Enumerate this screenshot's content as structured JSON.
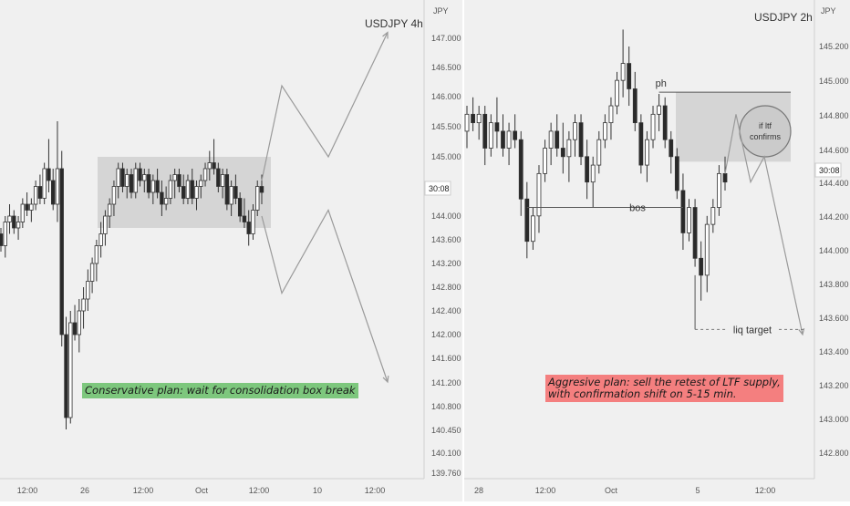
{
  "chart_data": [
    {
      "type": "candlestick",
      "title": "USDJPY 4h",
      "y_axis_label": "JPY",
      "y_ticks": [
        "147.000",
        "146.500",
        "146.000",
        "145.500",
        "145.000",
        "144.000",
        "143.600",
        "143.200",
        "142.800",
        "142.400",
        "142.000",
        "141.600",
        "141.200",
        "140.800",
        "140.450",
        "140.100",
        "139.760"
      ],
      "x_ticks": [
        "12:00",
        "26",
        "12:00",
        "Oct",
        "12:00",
        "10",
        "12:00"
      ],
      "price_badge": "30:08",
      "annotation": "Conservative plan: wait for consolidation box break",
      "consolidation_box": {
        "high": 145.0,
        "low": 143.8
      },
      "scenario_paths": [
        {
          "direction": "up",
          "points": [
            144.6,
            146.2,
            145.0,
            147.1
          ]
        },
        {
          "direction": "down",
          "points": [
            144.0,
            142.7,
            144.1,
            141.2
          ]
        }
      ],
      "ohlc": [
        [
          143.7,
          143.8,
          143.4,
          143.5
        ],
        [
          143.5,
          144.0,
          143.3,
          143.9
        ],
        [
          143.9,
          144.2,
          143.7,
          144.0
        ],
        [
          144.0,
          144.1,
          143.7,
          143.8
        ],
        [
          143.8,
          144.0,
          143.6,
          143.9
        ],
        [
          143.9,
          144.3,
          143.8,
          144.2
        ],
        [
          144.2,
          144.4,
          144.0,
          144.1
        ],
        [
          144.1,
          144.3,
          143.9,
          144.2
        ],
        [
          144.2,
          144.6,
          144.1,
          144.5
        ],
        [
          144.5,
          144.7,
          144.2,
          144.3
        ],
        [
          144.3,
          144.9,
          144.2,
          144.8
        ],
        [
          144.8,
          145.3,
          144.4,
          144.6
        ],
        [
          144.6,
          144.8,
          144.1,
          144.2
        ],
        [
          144.2,
          145.6,
          143.9,
          144.8
        ],
        [
          144.8,
          145.1,
          141.8,
          142.0
        ],
        [
          142.0,
          142.3,
          140.4,
          140.6
        ],
        [
          140.6,
          142.4,
          140.5,
          142.2
        ],
        [
          142.2,
          142.5,
          141.9,
          142.0
        ],
        [
          142.0,
          142.6,
          141.7,
          142.4
        ],
        [
          142.4,
          142.8,
          142.1,
          142.6
        ],
        [
          142.6,
          143.1,
          142.4,
          142.9
        ],
        [
          142.9,
          143.3,
          142.7,
          143.2
        ],
        [
          143.2,
          143.6,
          142.9,
          143.5
        ],
        [
          143.5,
          143.9,
          143.3,
          143.7
        ],
        [
          143.7,
          144.1,
          143.5,
          144.0
        ],
        [
          144.0,
          144.3,
          143.8,
          144.2
        ],
        [
          144.2,
          144.6,
          144.0,
          144.5
        ],
        [
          144.5,
          144.9,
          144.3,
          144.8
        ],
        [
          144.8,
          144.9,
          144.4,
          144.5
        ],
        [
          144.5,
          144.8,
          144.3,
          144.7
        ],
        [
          144.7,
          144.8,
          144.3,
          144.4
        ],
        [
          144.4,
          144.9,
          144.3,
          144.8
        ],
        [
          144.8,
          144.9,
          144.5,
          144.6
        ],
        [
          144.6,
          144.8,
          144.4,
          144.7
        ],
        [
          144.7,
          144.8,
          144.3,
          144.4
        ],
        [
          144.4,
          144.7,
          144.2,
          144.6
        ],
        [
          144.6,
          144.8,
          144.3,
          144.4
        ],
        [
          144.4,
          144.6,
          144.0,
          144.2
        ],
        [
          144.2,
          144.5,
          144.1,
          144.3
        ],
        [
          144.3,
          144.7,
          144.2,
          144.6
        ],
        [
          144.6,
          144.8,
          144.3,
          144.7
        ],
        [
          144.7,
          144.8,
          144.4,
          144.5
        ],
        [
          144.5,
          144.7,
          144.2,
          144.3
        ],
        [
          144.3,
          144.7,
          144.2,
          144.6
        ],
        [
          144.6,
          144.8,
          144.2,
          144.3
        ],
        [
          144.3,
          144.6,
          144.1,
          144.5
        ],
        [
          144.5,
          144.7,
          144.3,
          144.6
        ],
        [
          144.6,
          144.9,
          144.5,
          144.8
        ],
        [
          144.8,
          145.1,
          144.6,
          144.9
        ],
        [
          144.9,
          145.3,
          144.7,
          144.8
        ],
        [
          144.8,
          144.9,
          144.4,
          144.5
        ],
        [
          144.5,
          144.8,
          144.3,
          144.7
        ],
        [
          144.7,
          144.8,
          144.1,
          144.2
        ],
        [
          144.2,
          144.6,
          144.0,
          144.5
        ],
        [
          144.5,
          144.7,
          144.2,
          144.3
        ],
        [
          144.3,
          144.4,
          143.9,
          144.0
        ],
        [
          144.0,
          144.3,
          143.8,
          143.9
        ],
        [
          143.9,
          144.1,
          143.5,
          143.7
        ],
        [
          143.7,
          144.2,
          143.6,
          144.1
        ],
        [
          144.1,
          144.6,
          144.0,
          144.5
        ],
        [
          144.5,
          144.7,
          144.2,
          144.4
        ]
      ]
    },
    {
      "type": "candlestick",
      "title": "USDJPY 2h",
      "y_axis_label": "JPY",
      "y_ticks": [
        "145.200",
        "145.000",
        "144.800",
        "144.600",
        "144.400",
        "144.200",
        "144.000",
        "143.800",
        "143.600",
        "143.400",
        "143.200",
        "143.000",
        "142.800"
      ],
      "x_ticks": [
        "28",
        "12:00",
        "Oct",
        "5",
        "12:00"
      ],
      "price_badge": "30:08",
      "annotation": "Aggresive plan: sell the retest of LTF supply, with confirmation shift on 5-15 min.",
      "labels": {
        "ph": "ph",
        "bos": "bos",
        "confirm": "if ltf confirms",
        "target": "liq target"
      },
      "supply_box": {
        "high": 144.93,
        "low": 144.52
      },
      "liquidity_target": 143.53,
      "ohlc": [
        [
          144.7,
          144.85,
          144.6,
          144.8
        ],
        [
          144.8,
          144.9,
          144.7,
          144.75
        ],
        [
          144.75,
          144.85,
          144.65,
          144.8
        ],
        [
          144.8,
          144.85,
          144.5,
          144.6
        ],
        [
          144.6,
          144.8,
          144.55,
          144.75
        ],
        [
          144.75,
          144.9,
          144.6,
          144.7
        ],
        [
          144.7,
          144.8,
          144.55,
          144.6
        ],
        [
          144.6,
          144.75,
          144.5,
          144.7
        ],
        [
          144.7,
          144.8,
          144.6,
          144.65
        ],
        [
          144.65,
          144.7,
          144.2,
          144.3
        ],
        [
          144.3,
          144.4,
          143.95,
          144.05
        ],
        [
          144.05,
          144.25,
          144.0,
          144.2
        ],
        [
          144.2,
          144.5,
          144.1,
          144.45
        ],
        [
          144.45,
          144.65,
          144.4,
          144.6
        ],
        [
          144.6,
          144.75,
          144.5,
          144.7
        ],
        [
          144.7,
          144.8,
          144.55,
          144.6
        ],
        [
          144.6,
          144.75,
          144.45,
          144.55
        ],
        [
          144.55,
          144.7,
          144.4,
          144.65
        ],
        [
          144.65,
          144.8,
          144.55,
          144.75
        ],
        [
          144.75,
          144.8,
          144.5,
          144.55
        ],
        [
          144.55,
          144.65,
          144.3,
          144.4
        ],
        [
          144.4,
          144.55,
          144.25,
          144.5
        ],
        [
          144.5,
          144.7,
          144.45,
          144.65
        ],
        [
          144.65,
          144.8,
          144.6,
          144.75
        ],
        [
          144.75,
          144.9,
          144.65,
          144.85
        ],
        [
          144.85,
          145.05,
          144.8,
          145.0
        ],
        [
          145.0,
          145.3,
          144.9,
          145.1
        ],
        [
          145.1,
          145.2,
          144.85,
          144.95
        ],
        [
          144.95,
          145.05,
          144.7,
          144.75
        ],
        [
          144.75,
          144.8,
          144.45,
          144.5
        ],
        [
          144.5,
          144.7,
          144.4,
          144.65
        ],
        [
          144.65,
          144.85,
          144.6,
          144.8
        ],
        [
          144.8,
          144.92,
          144.7,
          144.85
        ],
        [
          144.85,
          144.9,
          144.6,
          144.65
        ],
        [
          144.65,
          144.7,
          144.45,
          144.55
        ],
        [
          144.55,
          144.6,
          144.3,
          144.35
        ],
        [
          144.35,
          144.45,
          144.0,
          144.1
        ],
        [
          144.1,
          144.3,
          144.05,
          144.25
        ],
        [
          144.25,
          144.3,
          143.9,
          143.95
        ],
        [
          143.95,
          144.05,
          143.7,
          143.85
        ],
        [
          143.85,
          144.2,
          143.75,
          144.15
        ],
        [
          144.15,
          144.3,
          144.1,
          144.25
        ],
        [
          144.25,
          144.5,
          144.2,
          144.45
        ],
        [
          144.45,
          144.55,
          144.35,
          144.4
        ]
      ]
    }
  ]
}
